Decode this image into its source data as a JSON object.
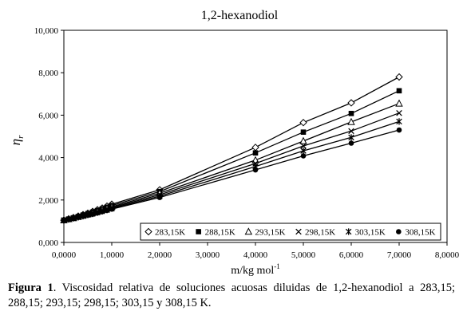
{
  "chart_data": {
    "type": "line",
    "title": "1,2-hexanodiol",
    "xlabel": "m/kg mol",
    "xlabel_sup": "-1",
    "ylabel": "η",
    "ylabel_sub": "r",
    "xlim": [
      0,
      8
    ],
    "ylim": [
      0,
      10
    ],
    "xticks": [
      "0,0000",
      "1,0000",
      "2,0000",
      "3,0000",
      "4,0000",
      "5,0000",
      "6,0000",
      "7,0000",
      "8,0000"
    ],
    "yticks": [
      "0,000",
      "2,000",
      "4,000",
      "6,000",
      "8,000",
      "10,000"
    ],
    "grid": false,
    "legend_position": "bottom-right",
    "x": [
      0.0,
      0.1,
      0.2,
      0.3,
      0.4,
      0.5,
      0.6,
      0.7,
      0.8,
      0.9,
      1.0,
      2.0,
      4.0,
      5.0,
      6.0,
      7.0
    ],
    "series": [
      {
        "name": "283,15K",
        "marker": "diamond-open",
        "values": [
          1.05,
          1.11,
          1.17,
          1.24,
          1.31,
          1.38,
          1.46,
          1.54,
          1.62,
          1.71,
          1.8,
          2.48,
          4.48,
          5.65,
          6.58,
          7.8
        ]
      },
      {
        "name": "288,15K",
        "marker": "square-filled",
        "values": [
          1.05,
          1.1,
          1.16,
          1.22,
          1.29,
          1.36,
          1.43,
          1.5,
          1.58,
          1.66,
          1.74,
          2.4,
          4.22,
          5.2,
          6.08,
          7.15
        ]
      },
      {
        "name": "293,15K",
        "marker": "triangle-open",
        "values": [
          1.05,
          1.1,
          1.15,
          1.21,
          1.27,
          1.33,
          1.4,
          1.47,
          1.54,
          1.61,
          1.68,
          2.32,
          3.88,
          4.78,
          5.68,
          6.55
        ]
      },
      {
        "name": "298,15K",
        "marker": "x",
        "values": [
          1.04,
          1.09,
          1.14,
          1.2,
          1.25,
          1.31,
          1.37,
          1.43,
          1.5,
          1.57,
          1.64,
          2.25,
          3.72,
          4.55,
          5.25,
          6.1
        ]
      },
      {
        "name": "303,15K",
        "marker": "asterisk",
        "values": [
          1.04,
          1.09,
          1.14,
          1.19,
          1.24,
          1.3,
          1.35,
          1.41,
          1.47,
          1.53,
          1.6,
          2.18,
          3.58,
          4.32,
          4.95,
          5.7
        ]
      },
      {
        "name": "308,15K",
        "marker": "circle-filled",
        "values": [
          1.04,
          1.08,
          1.13,
          1.18,
          1.23,
          1.28,
          1.33,
          1.39,
          1.45,
          1.51,
          1.57,
          2.12,
          3.42,
          4.08,
          4.68,
          5.3
        ]
      }
    ]
  },
  "caption": {
    "label": "Figura 1",
    "text": ". Viscosidad relativa de soluciones acuosas diluidas de 1,2-hexanodiol a 283,15; 288,15; 293,15; 298,15; 303,15 y 308,15 K."
  }
}
